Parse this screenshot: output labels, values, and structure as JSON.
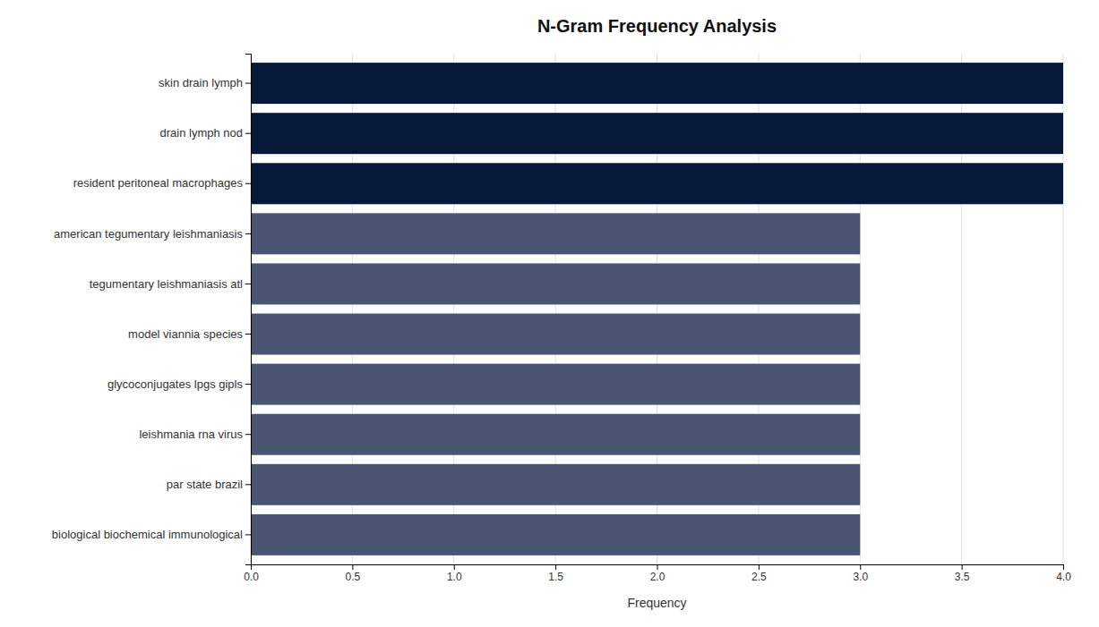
{
  "chart_data": {
    "type": "bar",
    "orientation": "horizontal",
    "title": "N-Gram Frequency Analysis",
    "xlabel": "Frequency",
    "categories": [
      "biological biochemical immunological",
      "par state brazil",
      "leishmania rna virus",
      "glycoconjugates lpgs gipls",
      "model viannia species",
      "tegumentary leishmaniasis atl",
      "american tegumentary leishmaniasis",
      "resident peritoneal macrophages",
      "drain lymph nod",
      "skin drain lymph"
    ],
    "values": [
      3,
      3,
      3,
      3,
      3,
      3,
      3,
      4,
      4,
      4
    ],
    "colors": [
      "#4a5572",
      "#4a5572",
      "#4a5572",
      "#4a5572",
      "#4a5572",
      "#4a5572",
      "#4a5572",
      "#071938",
      "#071938",
      "#071938"
    ],
    "xlim": [
      0,
      4.0
    ],
    "xticks": [
      {
        "value": 0.0,
        "label": "0.0"
      },
      0.5,
      {
        "value": 1.0,
        "label": "1.0"
      },
      1.5,
      {
        "value": 2.0,
        "label": "2.0"
      },
      2.5,
      {
        "value": 3.0,
        "label": "3.0"
      },
      3.5,
      {
        "value": 4.0,
        "label": "4.0"
      }
    ],
    "grid": true
  }
}
